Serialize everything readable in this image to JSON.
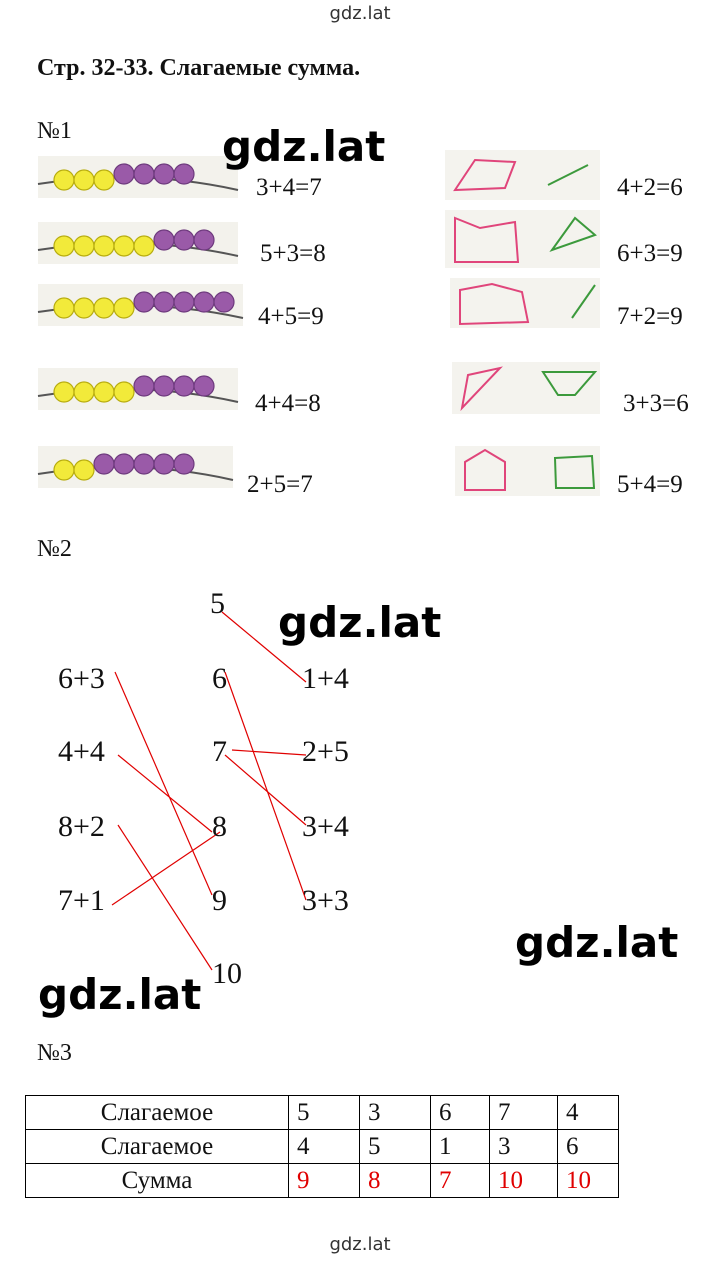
{
  "header": {
    "site": "gdz.lat",
    "title": "Стр. 32-33. Слагаемые сумма."
  },
  "task1": {
    "label": "№1",
    "beads": [
      "3+4=7",
      "5+3=8",
      "4+5=9",
      "4+4=8",
      "2+5=7"
    ],
    "shapes": [
      "4+2=6",
      "6+3=9",
      "7+2=9",
      "3+3=6",
      "5+4=9"
    ]
  },
  "task2": {
    "label": "№2",
    "left": [
      "6+3",
      "4+4",
      "8+2",
      "7+1"
    ],
    "middle": [
      5,
      6,
      7,
      8,
      9,
      10
    ],
    "right": [
      "1+4",
      "2+5",
      "3+4",
      "3+3"
    ]
  },
  "task3": {
    "label": "№3",
    "table": {
      "rows": [
        [
          "Слагаемое",
          5,
          3,
          6,
          7,
          4
        ],
        [
          "Слагаемое",
          4,
          5,
          1,
          3,
          6
        ],
        [
          "Сумма",
          9,
          8,
          7,
          10,
          10
        ]
      ]
    }
  },
  "watermarks": [
    "gdz.lat",
    "gdz.lat",
    "gdz.lat",
    "gdz.lat"
  ],
  "footer": "gdz.lat"
}
